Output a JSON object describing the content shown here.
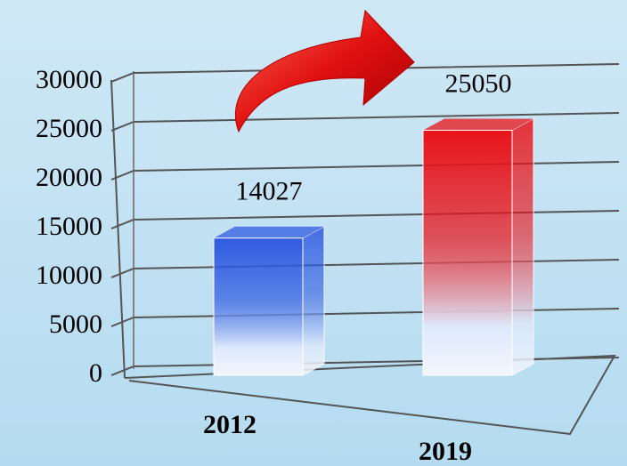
{
  "chart_data": {
    "type": "bar3d",
    "categories": [
      "2012",
      "2019"
    ],
    "values": [
      14027,
      25050
    ],
    "colors": [
      "#2f5be0",
      "#e8141a"
    ],
    "ylim": [
      0,
      30000
    ],
    "yticks": [
      0,
      5000,
      10000,
      15000,
      20000,
      25000,
      30000
    ],
    "grid": true
  }
}
